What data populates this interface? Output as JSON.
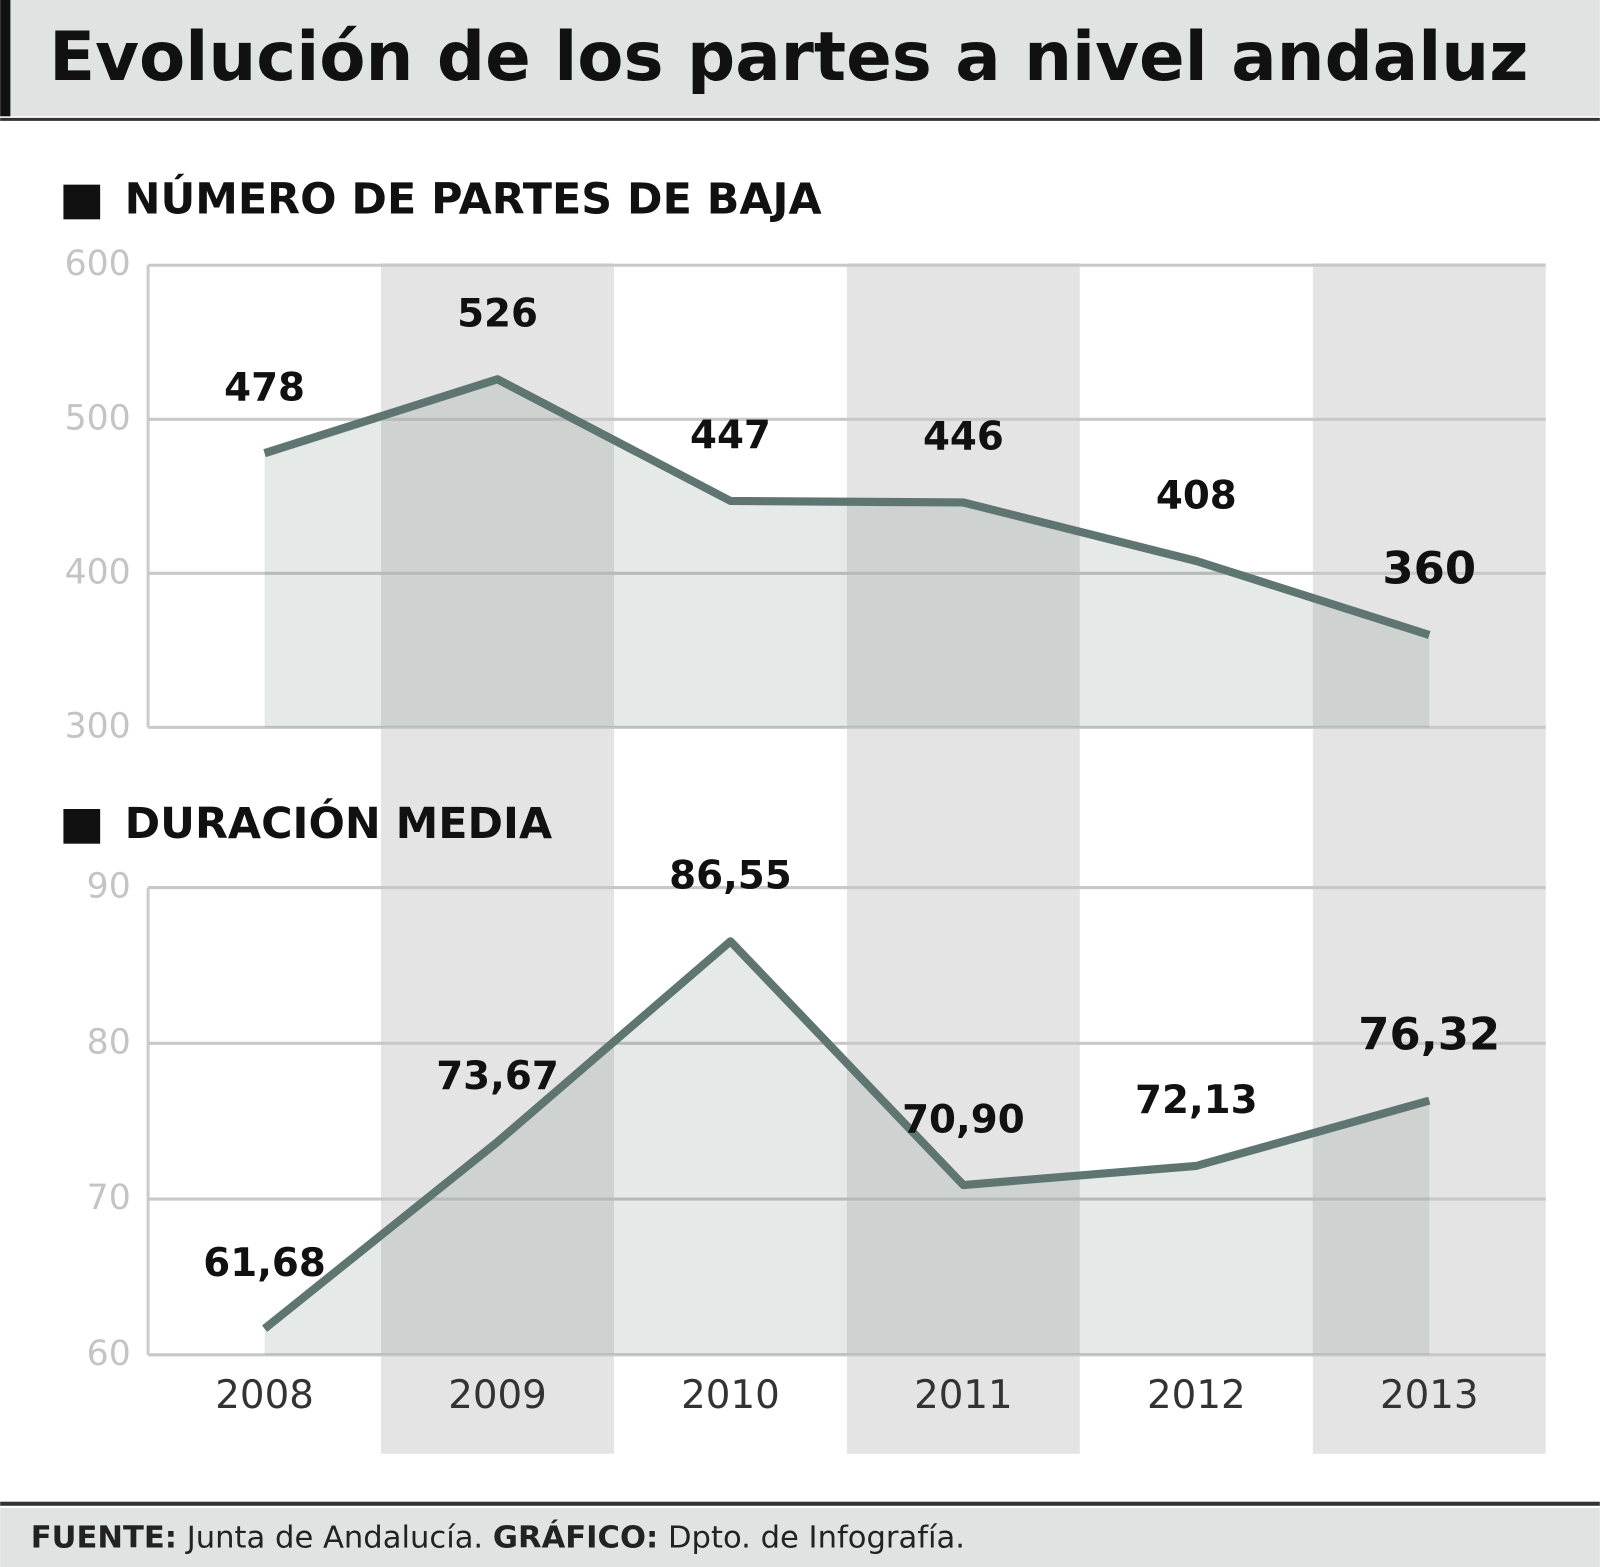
{
  "title": "Evolución de los partes a nivel andaluz",
  "chart_data": [
    {
      "type": "area",
      "title": "NÚMERO DE PARTES DE BAJA",
      "values": [
        478,
        526,
        447,
        446,
        408,
        360
      ],
      "color": "#5f7571",
      "ylim": [
        300,
        600
      ],
      "yticks": [
        300,
        400,
        500,
        600
      ],
      "grid": true
    },
    {
      "type": "area",
      "title": "DURACIÓN MEDIA",
      "categories": [
        "2008",
        "2009",
        "2010",
        "2011",
        "2012",
        "2013"
      ],
      "values": [
        61.68,
        73.67,
        86.55,
        70.9,
        72.13,
        76.32
      ],
      "value_labels": [
        "61,68",
        "73,67",
        "86,55",
        "70,90",
        "72,13",
        "76,32"
      ],
      "color": "#5f7571",
      "ylim": [
        60,
        90
      ],
      "yticks": [
        60,
        70,
        80,
        90
      ],
      "grid": true
    }
  ],
  "footer": {
    "source_label": "FUENTE:",
    "source": "Junta de Andalucía.",
    "credit_label": "GRÁFICO:",
    "credit": "Dpto. de Infografía."
  }
}
